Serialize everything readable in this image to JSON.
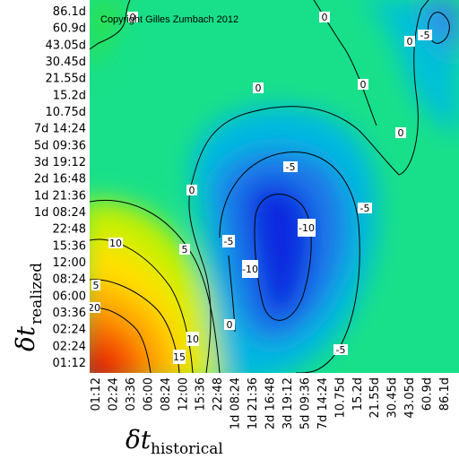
{
  "chart_data": {
    "type": "heatmap",
    "title": "",
    "copyright": "Copyright Gilles Zumbach 2012",
    "xlabel": {
      "main": "δt",
      "sub": "historical"
    },
    "ylabel": {
      "main": "δt",
      "sub": "realized"
    },
    "x_ticks": [
      "01:12",
      "02:24",
      "03:36",
      "06:00",
      "08:24",
      "12:00",
      "15:36",
      "22:48",
      "1d 08:24",
      "1d 21:36",
      "2d 16:48",
      "3d 19:12",
      "5d 09:36",
      "7d 14:24",
      "10.75d",
      "15.2d",
      "21.55d",
      "30.45d",
      "43.05d",
      "60.9d",
      "86.1d"
    ],
    "y_ticks": [
      "01:12",
      "02:24",
      "02:24",
      "03:36",
      "06:00",
      "08:24",
      "12:00",
      "15:36",
      "22:48",
      "1d 08:24",
      "1d 21:36",
      "2d 16:48",
      "3d 19:12",
      "5d 09:36",
      "7d 14:24",
      "10.75d",
      "15.2d",
      "21.55d",
      "30.45d",
      "43.05d",
      "60.9d",
      "86.1d"
    ],
    "contour_levels": [
      -10,
      -5,
      0,
      5,
      10,
      15,
      20
    ],
    "colormap": [
      "#e80000",
      "#f56a00",
      "#ffd400",
      "#b4f000",
      "#20e030",
      "#00e8a0",
      "#00b0e8",
      "#1a60e0",
      "#0010c0"
    ]
  }
}
